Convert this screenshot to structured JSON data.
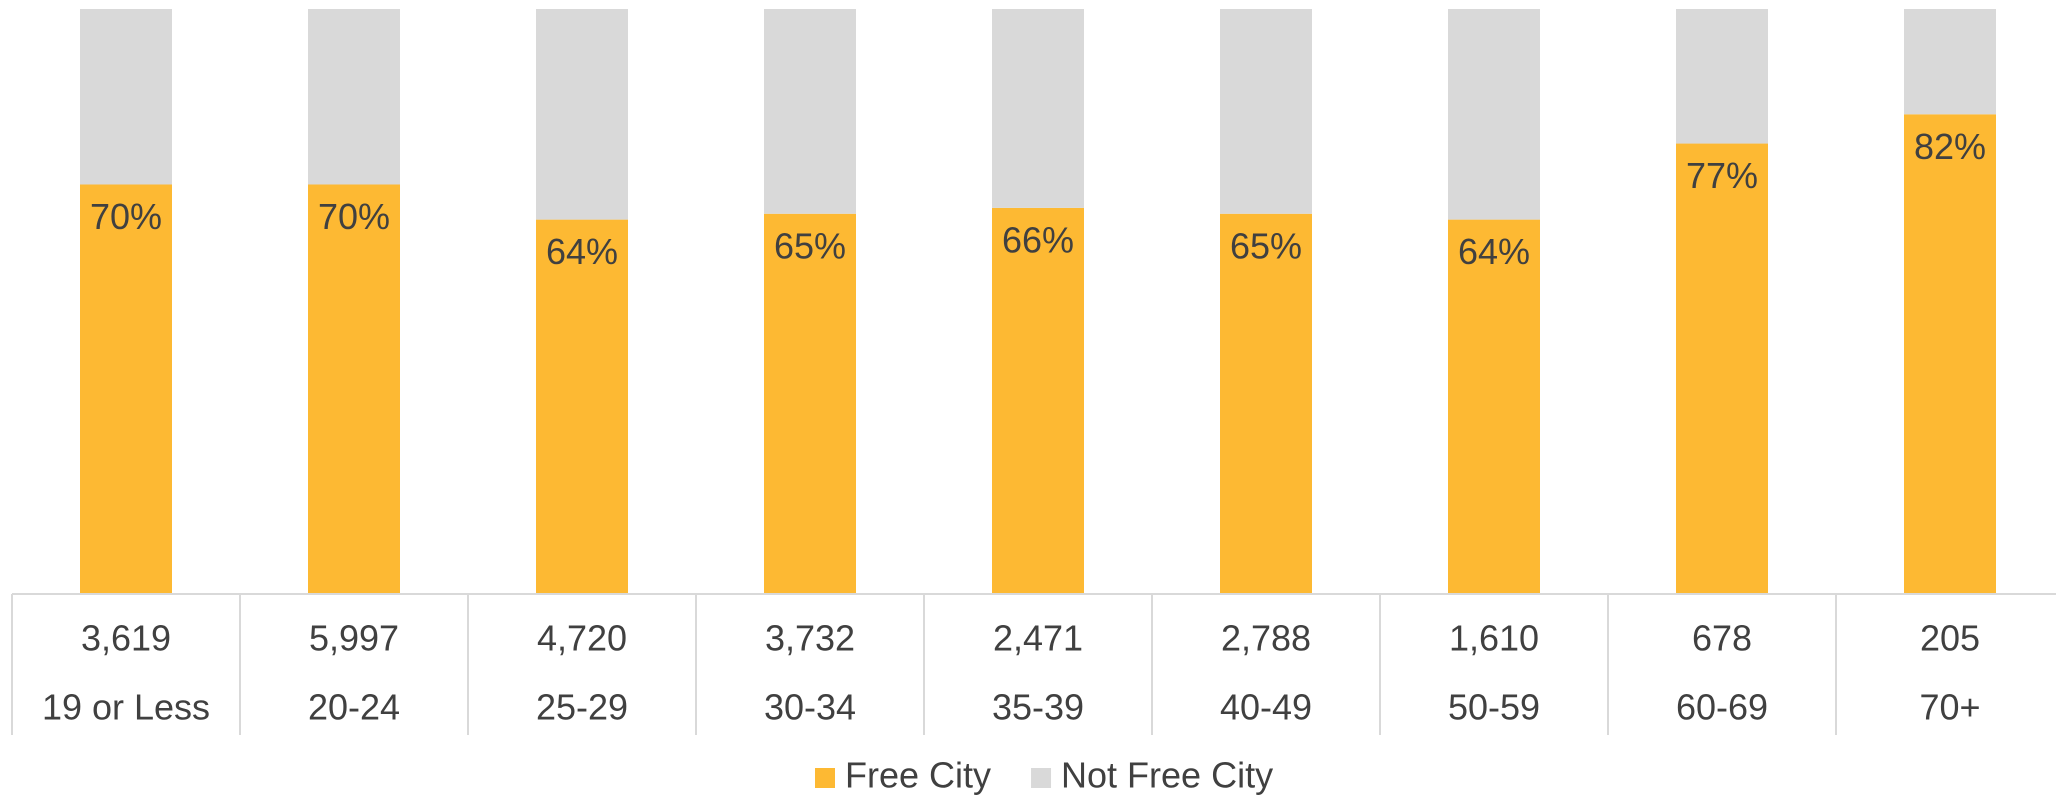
{
  "chart_data": {
    "type": "stacked_bar",
    "categories": [
      "19 or Less",
      "20-24",
      "25-29",
      "30-34",
      "35-39",
      "40-49",
      "50-59",
      "60-69",
      "70+"
    ],
    "counts": [
      {
        "value": 3619,
        "label": "3,619"
      },
      {
        "value": 5997,
        "label": "5,997"
      },
      {
        "value": 4720,
        "label": "4,720"
      },
      {
        "value": 3732,
        "label": "3,732"
      },
      {
        "value": 2471,
        "label": "2,471"
      },
      {
        "value": 2788,
        "label": "2,788"
      },
      {
        "value": 1610,
        "label": "1,610"
      },
      {
        "value": 678,
        "label": "678"
      },
      {
        "value": 205,
        "label": "205"
      }
    ],
    "series": [
      {
        "name": "Free City",
        "color": "#fdb933",
        "values": [
          70,
          70,
          64,
          65,
          66,
          65,
          64,
          77,
          82
        ],
        "value_labels": [
          "70%",
          "70%",
          "64%",
          "65%",
          "66%",
          "65%",
          "64%",
          "77%",
          "82%"
        ]
      },
      {
        "name": "Not Free City",
        "color": "#d9d9d9",
        "values": [
          30,
          30,
          36,
          35,
          34,
          35,
          36,
          23,
          18
        ]
      }
    ],
    "ylim": [
      0,
      100
    ],
    "legend": "bottom"
  }
}
